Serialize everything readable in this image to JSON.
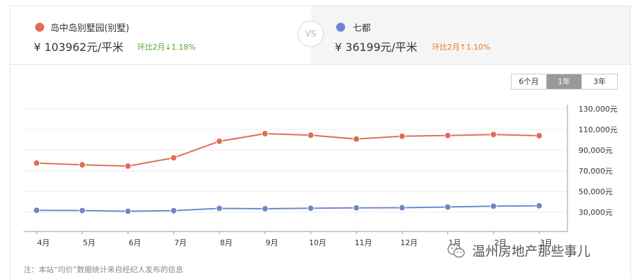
{
  "left": {
    "name": "岛中岛别墅园(别墅)",
    "price": "¥ 103962元/平米",
    "change": "环比2月↓1.18%",
    "dot_color": "#e06c56",
    "change_color": "#59a52e"
  },
  "vs": "VS",
  "right": {
    "name": "七都",
    "price": "¥ 36199元/平米",
    "change": "环比2月↑1.10%",
    "dot_color": "#6e87cc",
    "change_color": "#e8762f"
  },
  "range": {
    "options": [
      "6个月",
      "1年",
      "3年"
    ],
    "selected": "1年"
  },
  "chart_data": {
    "type": "line",
    "categories": [
      "4月",
      "5月",
      "6月",
      "7月",
      "8月",
      "9月",
      "10月",
      "11月",
      "12月",
      "1月",
      "2月",
      "3月"
    ],
    "series": [
      {
        "color": "#e06c56",
        "values": [
          77500,
          75800,
          74600,
          82600,
          98600,
          106000,
          104500,
          100800,
          103500,
          104200,
          105200,
          104000
        ]
      },
      {
        "color": "#6e87cc",
        "values": [
          31800,
          31600,
          30900,
          31500,
          33700,
          33300,
          33800,
          34200,
          34300,
          35000,
          35800,
          36200
        ]
      }
    ],
    "ylim": [
      10000,
      140000
    ],
    "ticks": [
      "130,000元",
      "110,000元",
      "90,000元",
      "70,000元",
      "50,000元",
      "30,000元"
    ],
    "tick_values": [
      130000,
      110000,
      90000,
      70000,
      50000,
      30000
    ],
    "grid": true
  },
  "note": "注：本站“均价”数据统计来自经纪人发布的信息",
  "watermark": "温州房地产那些事儿"
}
